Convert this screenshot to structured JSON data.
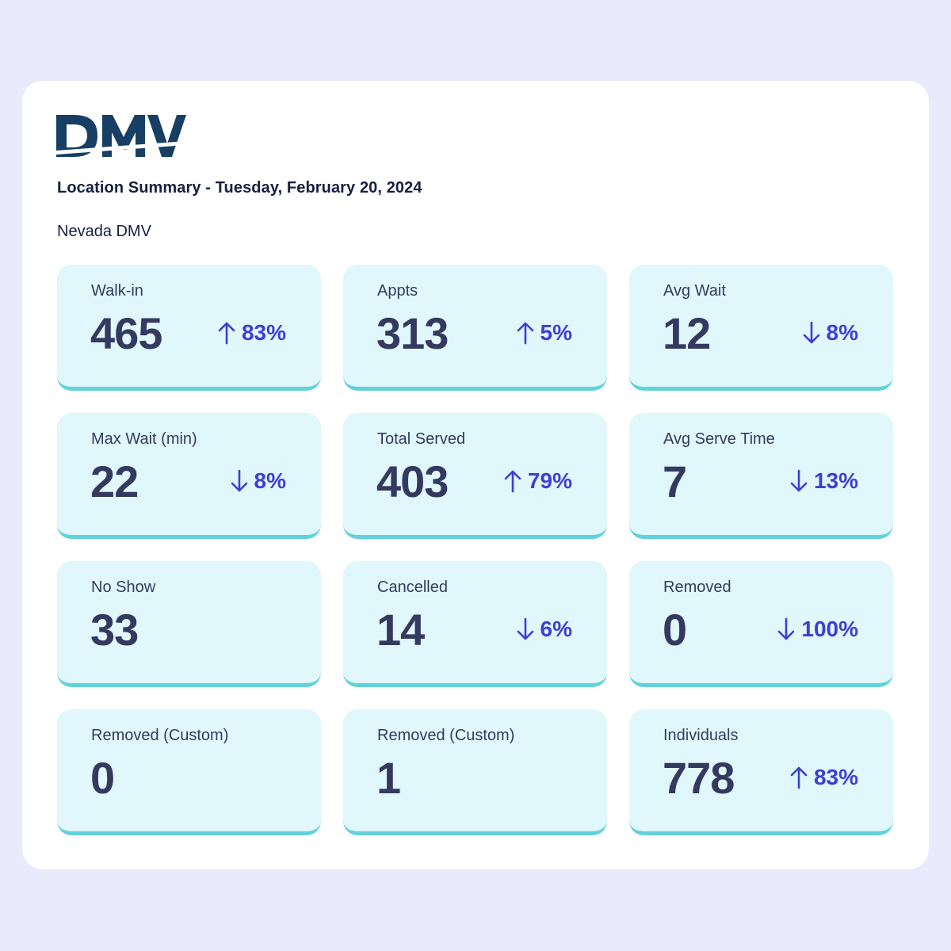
{
  "header": {
    "logo_text": "DMV",
    "title": "Location Summary - Tuesday, February 20, 2024",
    "subtitle": "Nevada DMV"
  },
  "colors": {
    "page_bg": "#e9ebfc",
    "panel_bg": "#ffffff",
    "logo": "#163f63",
    "card_bg": "#e0f7fb",
    "card_accent": "#62d2da",
    "value_text": "#343a5f",
    "change_text": "#3b3fd6"
  },
  "metrics": [
    {
      "label": "Walk-in",
      "value": "465",
      "change": "83%",
      "direction": "up"
    },
    {
      "label": "Appts",
      "value": "313",
      "change": "5%",
      "direction": "up"
    },
    {
      "label": "Avg Wait",
      "value": "12",
      "change": "8%",
      "direction": "down"
    },
    {
      "label": "Max Wait (min)",
      "value": "22",
      "change": "8%",
      "direction": "down"
    },
    {
      "label": "Total Served",
      "value": "403",
      "change": "79%",
      "direction": "up"
    },
    {
      "label": "Avg Serve Time",
      "value": "7",
      "change": "13%",
      "direction": "down"
    },
    {
      "label": "No Show",
      "value": "33",
      "change": null,
      "direction": null
    },
    {
      "label": "Cancelled",
      "value": "14",
      "change": "6%",
      "direction": "down"
    },
    {
      "label": "Removed",
      "value": "0",
      "change": "100%",
      "direction": "down"
    },
    {
      "label": "Removed (Custom)",
      "value": "0",
      "change": null,
      "direction": null
    },
    {
      "label": "Removed (Custom)",
      "value": "1",
      "change": null,
      "direction": null
    },
    {
      "label": "Individuals",
      "value": "778",
      "change": "83%",
      "direction": "up"
    }
  ]
}
